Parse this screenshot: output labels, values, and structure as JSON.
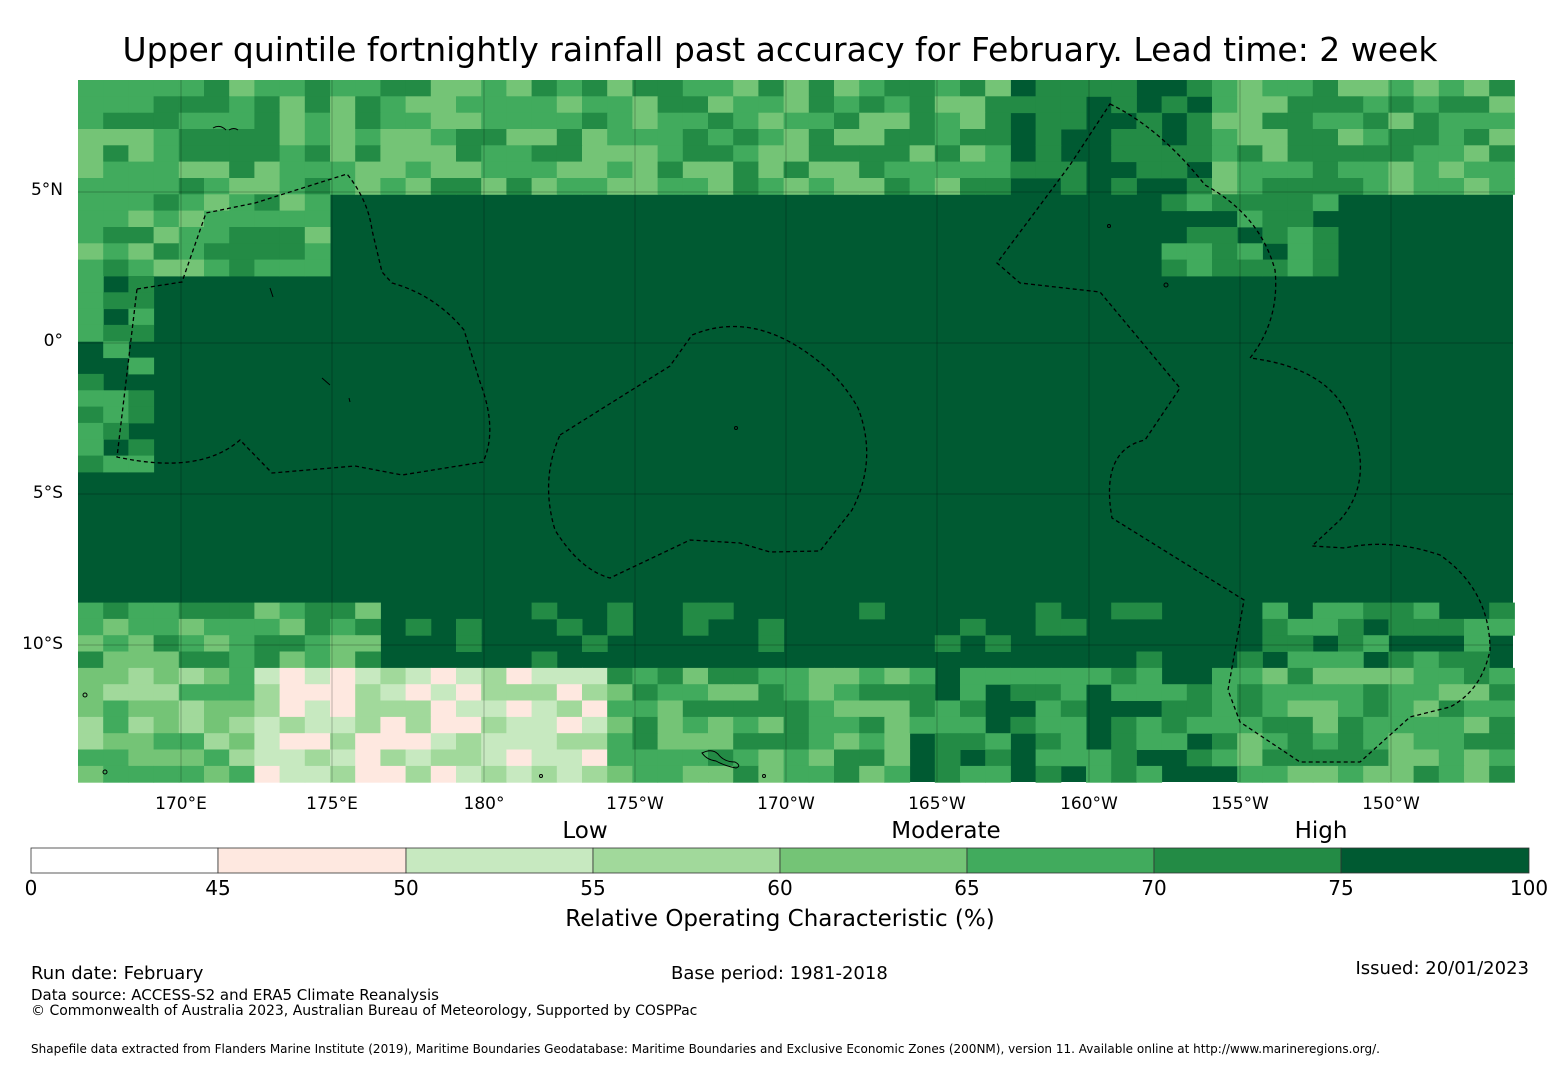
{
  "title": "Upper quintile fortnightly rainfall past accuracy for February. Lead time: 2 week",
  "map": {
    "lat_labels": [
      "5°N",
      "0°",
      "5°S",
      "10°S"
    ],
    "lon_labels": [
      "170°E",
      "175°E",
      "180°",
      "175°W",
      "170°W",
      "165°W",
      "160°W",
      "155°W",
      "150°W"
    ],
    "colors": {
      "c0": "#ffffff",
      "c1": "#fee8e0",
      "c2": "#c7e9c0",
      "c3": "#a1d99b",
      "c4": "#74c476",
      "c5": "#41ab5d",
      "c6": "#238b45",
      "c7": "#005a32"
    }
  },
  "colorbar": {
    "categories": [
      "Low",
      "Moderate",
      "High"
    ],
    "ticks": [
      "0",
      "45",
      "50",
      "55",
      "60",
      "65",
      "70",
      "75",
      "100"
    ],
    "label": "Relative Operating Characteristic (%)"
  },
  "footer": {
    "run_date": "Run date: February",
    "base_period": "Base period: 1981-2018",
    "issued": "Issued: 20/01/2023",
    "data_source": "Data source: ACCESS-S2 and ERA5 Climate Reanalysis",
    "copyright": "© Commonwealth of Australia 2023, Australian Bureau of Meteorology, Supported by COSPPac",
    "shapefile": "Shapefile data extracted from Flanders Marine Institute (2019), Maritime Boundaries Geodatabase: Maritime Boundaries and Exclusive Economic Zones (200NM), version 11. Available online at http://www.marineregions.org/."
  }
}
